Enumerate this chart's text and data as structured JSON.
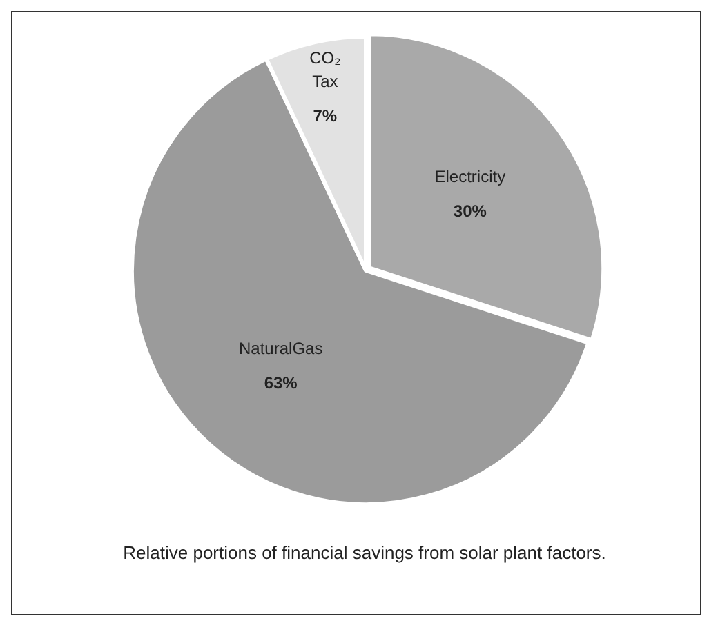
{
  "chart_data": {
    "type": "pie",
    "categories": [
      "Electricity",
      "NaturalGas",
      "CO₂ Tax"
    ],
    "values": [
      30,
      63,
      7
    ],
    "colors": [
      "#a9a9a9",
      "#9b9b9b",
      "#e2e2e2"
    ],
    "value_labels": [
      "30%",
      "63%",
      "7%"
    ],
    "legend": false,
    "annotations": [
      "Relative portions of financial savings from solar plant factors."
    ]
  }
}
